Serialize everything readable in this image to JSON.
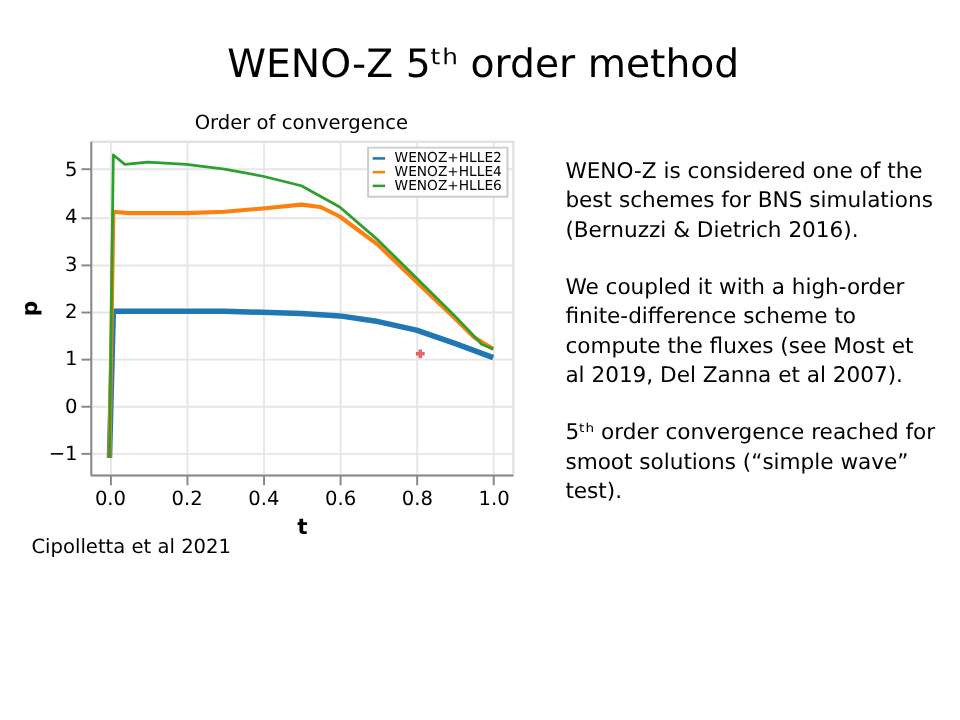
{
  "chart_data": [
    {
      "type": "line",
      "title": "Order of convergence",
      "xlabel": "t",
      "ylabel": "p",
      "xlim": [
        -0.05,
        1.05
      ],
      "xticks": [
        {
          "value": 0,
          "label": "0.0"
        },
        0.2,
        0.4,
        0.6,
        0.8,
        {
          "value": 1,
          "label": "1.0"
        }
      ],
      "ylim": [
        -1.45,
        5.6
      ],
      "yticks": [
        -1,
        0,
        1,
        2,
        3,
        4,
        5
      ],
      "grid": true,
      "legend": "top right",
      "marker": "none",
      "line_style": "solid",
      "annotations": [
        "Cipolletta et al 2021"
      ],
      "series": [
        {
          "name": "WENOZ+HLLE2",
          "color": "#1f77b4",
          "x": [
            0,
            0.01,
            0.1,
            0.3,
            0.5,
            0.6,
            0.7,
            0.8,
            0.9,
            1.0
          ],
          "values": [
            -1.1,
            2.0,
            2.0,
            2.0,
            1.95,
            1.9,
            1.78,
            1.6,
            1.32,
            1.02
          ]
        },
        {
          "name": "WENOZ+HLLE4",
          "color": "#ff7f0e",
          "x": [
            0,
            0.01,
            0.05,
            0.2,
            0.3,
            0.4,
            0.5,
            0.55,
            0.6,
            0.7,
            0.8,
            0.9,
            0.95,
            1.0
          ],
          "values": [
            -1.1,
            4.1,
            4.07,
            4.07,
            4.1,
            4.17,
            4.25,
            4.2,
            4.0,
            3.4,
            2.62,
            1.85,
            1.45,
            1.2
          ]
        },
        {
          "name": "WENOZ+HLLE6",
          "color": "#2ca02c",
          "x": [
            0,
            0.01,
            0.04,
            0.1,
            0.2,
            0.3,
            0.4,
            0.5,
            0.6,
            0.7,
            0.8,
            0.9,
            0.97,
            1.0
          ],
          "values": [
            -1.1,
            5.3,
            5.1,
            5.15,
            5.1,
            5.0,
            4.85,
            4.65,
            4.2,
            3.5,
            2.7,
            1.9,
            1.3,
            1.2
          ]
        },
        {
          "type": "scatter",
          "marker": "cross",
          "color": "#d62728",
          "x": [
            0.81
          ],
          "values": [
            1.1
          ]
        }
      ]
    },
    {
      "type": "other",
      "title": "WENO-Z 5ᵗʰ order method",
      "annotations": [
        "WENO-Z is considered one of the best schemes for BNS simulations (Bernuzzi & Dietrich 2016).",
        "We coupled it with a high-order finite-difference scheme to compute the fluxes (see Most et al 2019, Del Zanna et al 2007).",
        "5ᵗʰ order convergence reached for smoot solutions (“simple wave” test)."
      ]
    }
  ]
}
